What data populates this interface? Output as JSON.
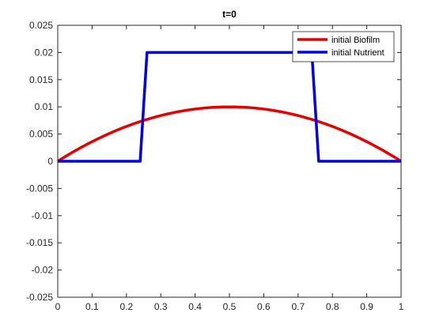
{
  "chart_data": {
    "type": "line",
    "title": "t=0",
    "xlabel": "",
    "ylabel": "",
    "xlim": [
      0,
      1
    ],
    "ylim": [
      -0.025,
      0.025
    ],
    "x_ticks": [
      0,
      0.1,
      0.2,
      0.3,
      0.4,
      0.5,
      0.6,
      0.7,
      0.8,
      0.9,
      1
    ],
    "x_tick_labels": [
      "0",
      "0.1",
      "0.2",
      "0.3",
      "0.4",
      "0.5",
      "0.6",
      "0.7",
      "0.8",
      "0.9",
      "1"
    ],
    "y_ticks": [
      -0.025,
      -0.02,
      -0.015,
      -0.01,
      -0.005,
      0,
      0.005,
      0.01,
      0.015,
      0.02,
      0.025
    ],
    "y_tick_labels": [
      "-0.025",
      "-0.02",
      "-0.015",
      "-0.01",
      "-0.005",
      "0",
      "0.005",
      "0.01",
      "0.015",
      "0.02",
      "0.025"
    ],
    "grid": false,
    "legend_position": "top-right",
    "series": [
      {
        "name": "initial Biofilm",
        "color": "#e60000",
        "x": [
          0,
          0.05,
          0.1,
          0.15,
          0.2,
          0.25,
          0.3,
          0.35,
          0.4,
          0.45,
          0.5,
          0.55,
          0.6,
          0.65,
          0.7,
          0.75,
          0.8,
          0.85,
          0.9,
          0.95,
          1
        ],
        "y": [
          0,
          0.0019,
          0.0036,
          0.0051,
          0.0064,
          0.0075,
          0.0084,
          0.0091,
          0.0096,
          0.0099,
          0.01,
          0.0099,
          0.0096,
          0.0091,
          0.0084,
          0.0075,
          0.0064,
          0.0051,
          0.0036,
          0.0019,
          0
        ]
      },
      {
        "name": "initial Nutrient",
        "color": "#0000e6",
        "x": [
          0,
          0.24,
          0.26,
          0.74,
          0.76,
          1
        ],
        "y": [
          0,
          0,
          0.02,
          0.02,
          0,
          0
        ]
      }
    ]
  }
}
